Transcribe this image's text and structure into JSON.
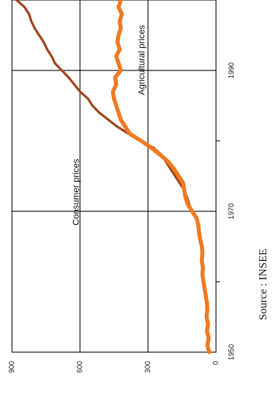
{
  "chart_data": {
    "type": "line",
    "title": "",
    "xlabel": "",
    "ylabel": "",
    "orientation": "rotated-90",
    "xlim": [
      1950,
      2000
    ],
    "ylim": [
      0,
      900
    ],
    "x_ticks": [
      1950,
      1970,
      1990
    ],
    "x_minor_ticks": [
      1960,
      1980
    ],
    "y_ticks": [
      0,
      300,
      600,
      900
    ],
    "grid": true,
    "series": [
      {
        "name": "Consumer prices",
        "color": "#a0471f",
        "x": [
          1970,
          1971,
          1972,
          1973,
          1974,
          1975,
          1976,
          1977,
          1978,
          1979,
          1980,
          1981,
          1982,
          1983,
          1984,
          1985,
          1986,
          1987,
          1988,
          1989,
          1990,
          1991,
          1992,
          1993,
          1994,
          1995,
          1996,
          1997,
          1998,
          1999,
          2000
        ],
        "values": [
          110,
          118,
          128,
          140,
          160,
          180,
          200,
          220,
          240,
          275,
          330,
          385,
          435,
          475,
          515,
          545,
          565,
          600,
          625,
          650,
          680,
          710,
          725,
          745,
          760,
          780,
          800,
          815,
          825,
          845,
          880
        ]
      },
      {
        "name": "Agricultural prices",
        "color": "#f07a22",
        "x": [
          1950,
          1951,
          1952,
          1953,
          1954,
          1955,
          1956,
          1957,
          1958,
          1959,
          1960,
          1961,
          1962,
          1963,
          1964,
          1965,
          1966,
          1967,
          1968,
          1969,
          1970,
          1971,
          1972,
          1973,
          1974,
          1975,
          1976,
          1977,
          1978,
          1979,
          1980,
          1981,
          1982,
          1983,
          1984,
          1985,
          1986,
          1987,
          1988,
          1989,
          1990,
          1991,
          1992,
          1993,
          1994,
          1995,
          1996,
          1997,
          1998,
          1999,
          2000
        ],
        "values": [
          30,
          38,
          32,
          40,
          35,
          42,
          38,
          40,
          45,
          50,
          55,
          60,
          58,
          63,
          60,
          62,
          70,
          75,
          78,
          85,
          105,
          125,
          135,
          140,
          145,
          165,
          185,
          210,
          245,
          285,
          330,
          380,
          400,
          420,
          430,
          440,
          450,
          455,
          440,
          445,
          420,
          430,
          440,
          425,
          435,
          430,
          420,
          425,
          415,
          430,
          420
        ]
      }
    ],
    "annotations": [
      {
        "text": "Consumer prices",
        "series": 0
      },
      {
        "text": "Agricultural prices",
        "series": 1
      }
    ]
  },
  "source": "Source : INSEE"
}
